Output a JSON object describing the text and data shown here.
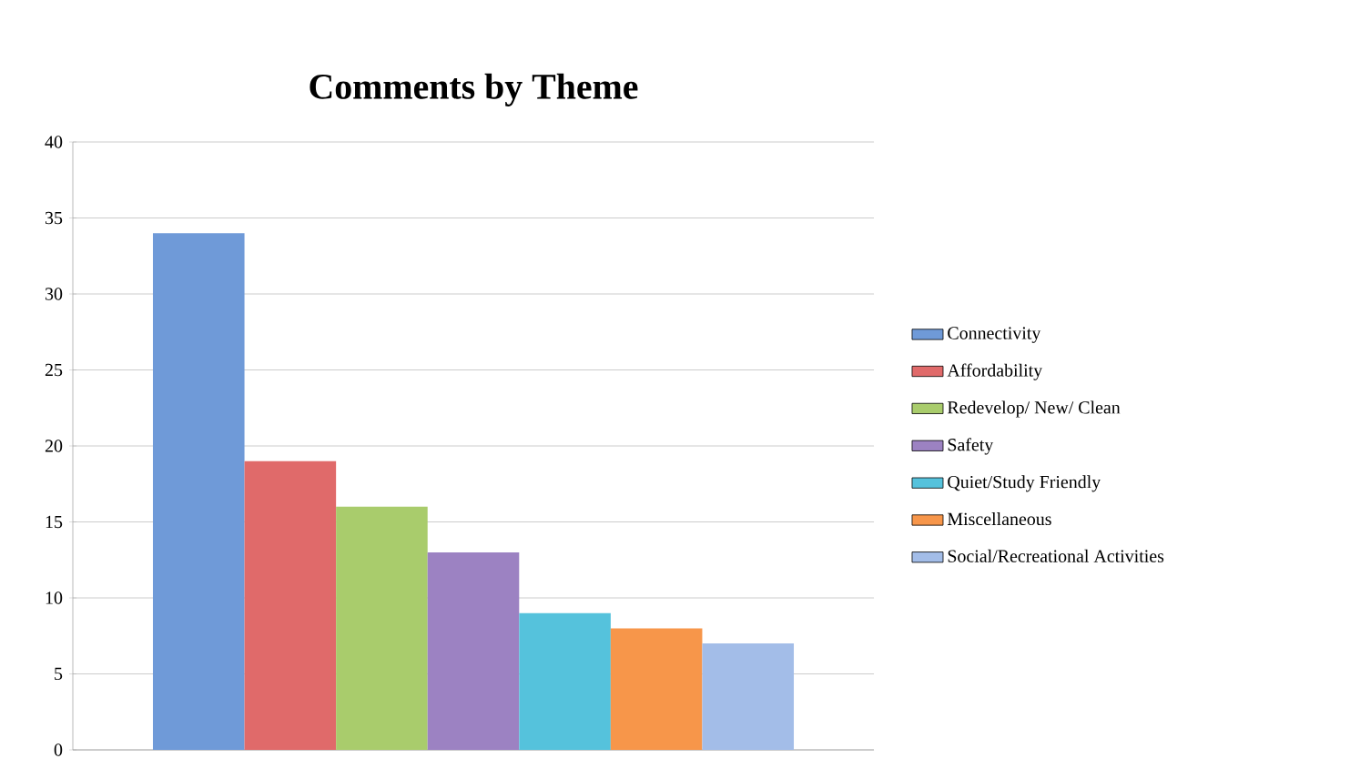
{
  "chart_data": {
    "type": "bar",
    "title": "Comments by Theme",
    "categories": [
      null
    ],
    "series": [
      {
        "name": "Connectivity",
        "color": "#6f9ad8",
        "values": [
          34
        ]
      },
      {
        "name": "Affordability",
        "color": "#e06a6a",
        "values": [
          19
        ]
      },
      {
        "name": "Redevelop/ New/ Clean",
        "color": "#a9cc6c",
        "values": [
          16
        ]
      },
      {
        "name": "Safety",
        "color": "#9c82c2",
        "values": [
          13
        ]
      },
      {
        "name": "Quiet/Study Friendly",
        "color": "#55c2dc",
        "values": [
          9
        ]
      },
      {
        "name": "Miscellaneous",
        "color": "#f7964a",
        "values": [
          8
        ]
      },
      {
        "name": "Social/Recreational Activities",
        "color": "#a3bde8",
        "values": [
          7
        ]
      }
    ],
    "ylim": [
      0,
      40
    ],
    "yticks": [
      0,
      5,
      10,
      15,
      20,
      25,
      30,
      35,
      40
    ],
    "grid": "y",
    "legend": "right"
  }
}
